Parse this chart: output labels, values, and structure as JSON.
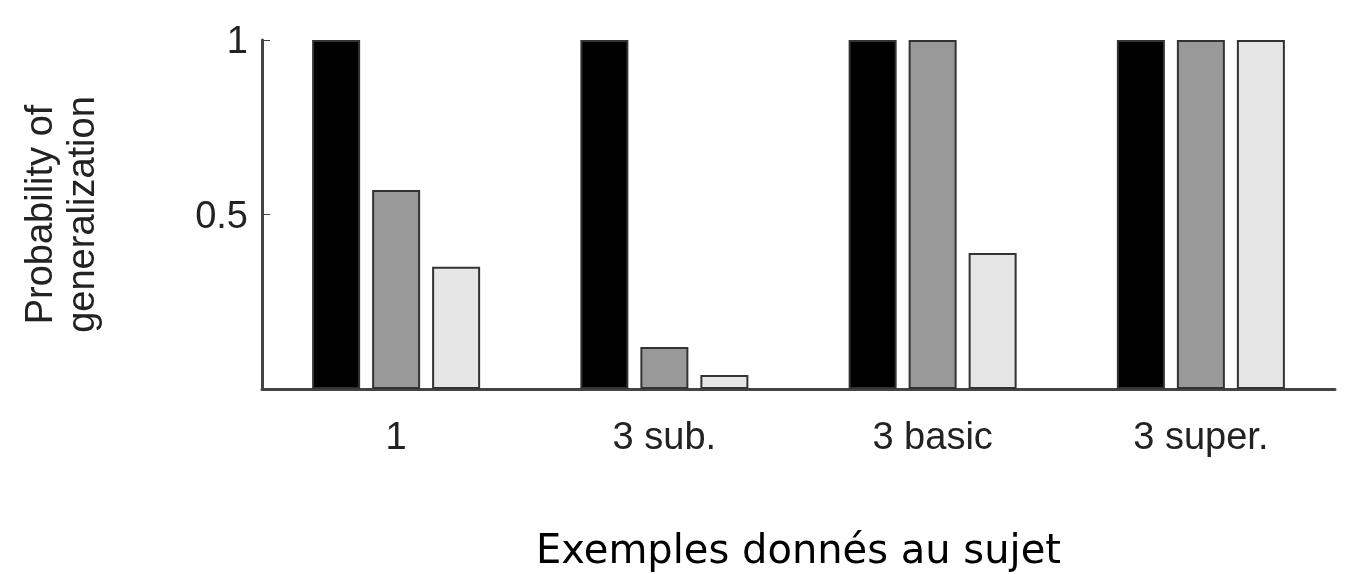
{
  "chart_data": {
    "type": "bar",
    "xlabel": "Exemples donnés au sujet",
    "ylabel": "Probability of\ngeneralization",
    "categories": [
      "1",
      "3 sub.",
      "3 basic",
      "3 super."
    ],
    "series": [
      {
        "color": "#000000",
        "values": [
          1,
          1,
          1,
          1
        ]
      },
      {
        "color": "#999999",
        "values": [
          0.57,
          0.12,
          1,
          1
        ]
      },
      {
        "color": "#e6e6e6",
        "values": [
          0.35,
          0.04,
          0.39,
          1
        ]
      }
    ],
    "ylim": [
      0,
      1
    ],
    "yticks": [
      0.5,
      1
    ],
    "grid": false
  }
}
